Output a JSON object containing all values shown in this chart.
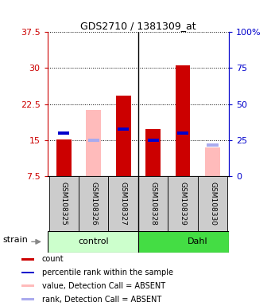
{
  "title": "GDS2710 / 1381309_at",
  "samples": [
    "GSM108325",
    "GSM108326",
    "GSM108327",
    "GSM108328",
    "GSM108329",
    "GSM108330"
  ],
  "ylim": [
    7.5,
    37.5
  ],
  "yticks": [
    7.5,
    15.0,
    22.5,
    30.0,
    37.5
  ],
  "ytick_labels": [
    "7.5",
    "15",
    "22.5",
    "30",
    "37.5"
  ],
  "y2ticks_data": [
    7.5,
    15.0,
    22.5,
    30.0,
    37.5
  ],
  "y2tick_labels": [
    "0",
    "25",
    "50",
    "75",
    "100%"
  ],
  "red_bar_top": [
    15.1,
    0,
    24.2,
    17.2,
    30.5,
    0
  ],
  "pink_bar_top": [
    0,
    21.3,
    0,
    0,
    0,
    13.5
  ],
  "blue_sq_y": [
    16.5,
    null,
    17.2,
    15.0,
    16.5,
    null
  ],
  "lblue_sq_y": [
    null,
    15.0,
    null,
    null,
    null,
    14.0
  ],
  "bar_bottom": 7.5,
  "red_color": "#cc0000",
  "pink_color": "#ffbbbb",
  "blue_color": "#0000cc",
  "lightblue_color": "#aaaaee",
  "left_axis_color": "#cc0000",
  "right_axis_color": "#0000cc",
  "ctrl_color": "#ccffcc",
  "dahl_color": "#44dd44",
  "grey_color": "#cccccc",
  "legend_items": [
    [
      "count",
      "#cc0000"
    ],
    [
      "percentile rank within the sample",
      "#0000cc"
    ],
    [
      "value, Detection Call = ABSENT",
      "#ffbbbb"
    ],
    [
      "rank, Detection Call = ABSENT",
      "#aaaaee"
    ]
  ]
}
